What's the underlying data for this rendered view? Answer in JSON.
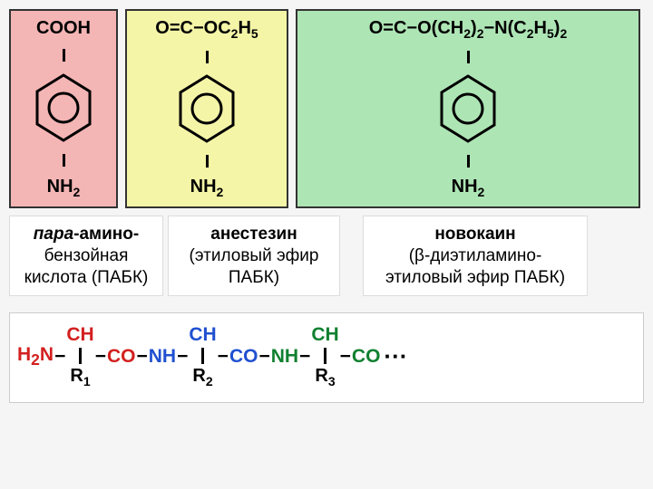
{
  "structures": {
    "s1": {
      "bg": "#f4b5b5",
      "top": "COOH",
      "bottom": "NH<sub>2</sub>"
    },
    "s2": {
      "bg": "#f5f5a8",
      "top": "O=C−OC<sub>2</sub>H<sub>5</sub>",
      "bottom": "NH<sub>2</sub>"
    },
    "s3": {
      "bg": "#aee5b5",
      "top": "O=C−O(CH<sub>2</sub>)<sub>2</sub>−N(C<sub>2</sub>H<sub>5</sub>)<sub>2</sub>",
      "bottom": "NH<sub>2</sub>"
    }
  },
  "labels": {
    "l1": {
      "prefix": "пара",
      "rest1": "-амино-",
      "rest2": "бензойная кислота (ПАБК)"
    },
    "l2": {
      "title": "анестезин",
      "sub": "(этиловый эфир ПАБК)"
    },
    "l3": {
      "title": "новокаин",
      "sub": "(β-диэтиламино-этиловый эфир ПАБК)"
    }
  },
  "peptide": {
    "h2n": "H<sub>2</sub>N",
    "ch": "CH",
    "co": "CO",
    "nh": "NH",
    "r1": "R<sub>1</sub>",
    "r2": "R<sub>2</sub>",
    "r3": "R<sub>3</sub>",
    "colors": {
      "unit1": "#d32020",
      "unit2": "#2050d0",
      "unit3": "#108030"
    }
  },
  "benzene": {
    "stroke": "#000",
    "stroke_width": 3
  }
}
